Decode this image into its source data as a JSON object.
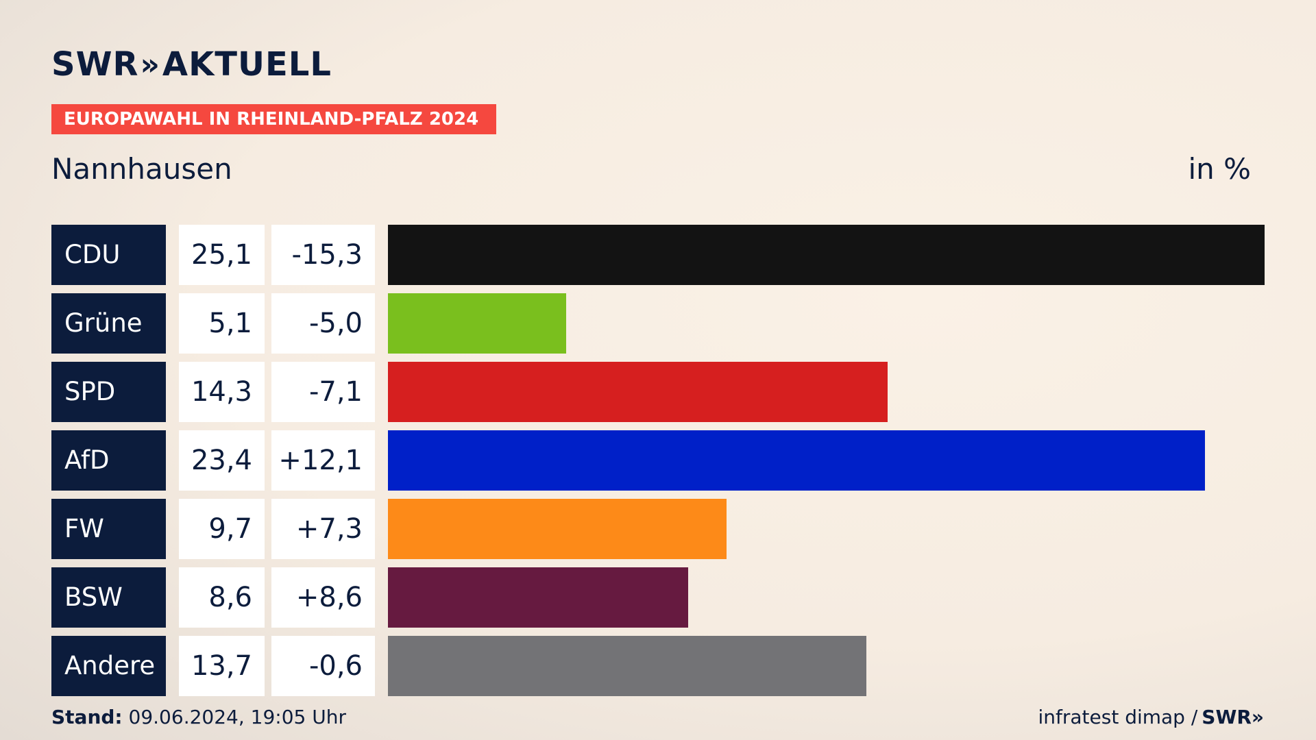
{
  "brand": {
    "logo_prefix": "SWR",
    "logo_chevrons": "»",
    "logo_suffix": "AKTUELL",
    "footer_logo": "SWR»"
  },
  "banner": {
    "text": "EUROPAWAHL IN RHEINLAND-PFALZ 2024",
    "color": "#f5483f"
  },
  "header": {
    "place": "Nannhausen",
    "unit": "in %"
  },
  "chart_data": {
    "type": "bar",
    "title": "Nannhausen",
    "unit": "in %",
    "xlim": [
      0,
      25.1
    ],
    "categories": [
      "CDU",
      "Grüne",
      "SPD",
      "AfD",
      "FW",
      "BSW",
      "Andere"
    ],
    "values": [
      25.1,
      5.1,
      14.3,
      23.4,
      9.7,
      8.6,
      13.7
    ],
    "value_labels": [
      "25,1",
      "5,1",
      "14,3",
      "23,4",
      "9,7",
      "8,6",
      "13,7"
    ],
    "changes": [
      -15.3,
      -5.0,
      -7.1,
      12.1,
      7.3,
      8.6,
      -0.6
    ],
    "change_labels": [
      "-15,3",
      "-5,0",
      "-7,1",
      "+12,1",
      "+7,3",
      "+8,6",
      "-0,6"
    ],
    "colors": [
      "#131313",
      "#7abf1e",
      "#d61f1f",
      "#0020c8",
      "#fd8a18",
      "#661a40",
      "#737376"
    ]
  },
  "footer": {
    "stand_label": "Stand:",
    "stand_value": "09.06.2024, 19:05 Uhr",
    "source": "infratest dimap /"
  }
}
